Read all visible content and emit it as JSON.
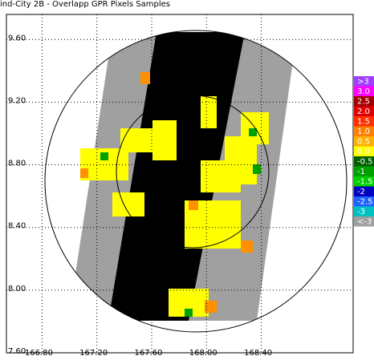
{
  "title": "ind-City 2B - Overlapp GPR Pixels Samples",
  "yaxis": {
    "ticks": [
      {
        "value": 9.6,
        "label": "9.60"
      },
      {
        "value": 9.2,
        "label": "9.20"
      },
      {
        "value": 8.8,
        "label": "8.80"
      },
      {
        "value": 8.4,
        "label": "8.40"
      },
      {
        "value": 8.0,
        "label": "8.00"
      },
      {
        "value": 7.6,
        "label": "7.60"
      }
    ],
    "lim": [
      7.6,
      9.76
    ]
  },
  "xaxis": {
    "ticks": [
      {
        "value": 166.8,
        "label": "166.80"
      },
      {
        "value": 167.2,
        "label": "167.20"
      },
      {
        "value": 167.6,
        "label": "167.60"
      },
      {
        "value": 168.0,
        "label": "168.00"
      },
      {
        "value": 168.4,
        "label": "168.40"
      }
    ],
    "lim": [
      166.54,
      169.07
    ]
  },
  "legend": [
    {
      "label": ">3",
      "color": "#a040ff"
    },
    {
      "label": "3.0",
      "color": "#ff00ff"
    },
    {
      "label": "2.5",
      "color": "#a00000"
    },
    {
      "label": "2.0",
      "color": "#e00000"
    },
    {
      "label": "1.5",
      "color": "#ff3000"
    },
    {
      "label": "1.0",
      "color": "#ff8000"
    },
    {
      "label": "0.5",
      "color": "#ffb000"
    },
    {
      "label": "0.0",
      "color": "#ffff00"
    },
    {
      "label": "-0.5",
      "color": "#006000"
    },
    {
      "label": "-1",
      "color": "#00a000"
    },
    {
      "label": "-1.5",
      "color": "#00d000"
    },
    {
      "label": "-2",
      "color": "#0000c0"
    },
    {
      "label": "-2.5",
      "color": "#2060ff"
    },
    {
      "label": "-3",
      "color": "#00c0c0"
    },
    {
      "label": "<-3",
      "color": "#a0a0a0"
    }
  ]
}
